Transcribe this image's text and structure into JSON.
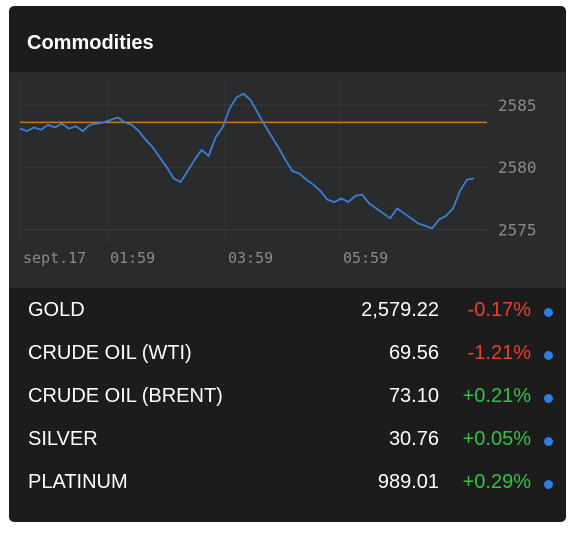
{
  "widget": {
    "title": "Commodities"
  },
  "colors": {
    "background": "#1c1c1c",
    "chart_background": "#2a2b2d",
    "line": "#3a7fd5",
    "reference_line": "#c7791e",
    "negative": "#e8412b",
    "positive": "#36c048",
    "dot": "#2f7de1",
    "tick_text": "#8a8a8a"
  },
  "rows": [
    {
      "name": "GOLD",
      "price": "2,579.22",
      "change": "-0.17%",
      "direction": "down"
    },
    {
      "name": "CRUDE OIL (WTI)",
      "price": "69.56",
      "change": "-1.21%",
      "direction": "down"
    },
    {
      "name": "CRUDE OIL (BRENT)",
      "price": "73.10",
      "change": "+0.21%",
      "direction": "up"
    },
    {
      "name": "SILVER",
      "price": "30.76",
      "change": "+0.05%",
      "direction": "up"
    },
    {
      "name": "PLATINUM",
      "price": "989.01",
      "change": "+0.29%",
      "direction": "up"
    }
  ],
  "chart_data": {
    "type": "line",
    "title": "",
    "xlabel": "",
    "ylabel": "",
    "x_ticks": [
      "sept.17",
      "01:59",
      "03:59",
      "05:59"
    ],
    "y_ticks": [
      2575,
      2580,
      2585
    ],
    "ylim": [
      2574,
      2587
    ],
    "grid": true,
    "reference_line": 2583.6,
    "series": [
      {
        "values": [
          2583.1,
          2582.9,
          2583.2,
          2583.0,
          2583.4,
          2583.2,
          2583.5,
          2583.1,
          2583.3,
          2582.9,
          2583.4,
          2583.5,
          2583.6,
          2583.8,
          2584.0,
          2583.6,
          2583.4,
          2582.9,
          2582.2,
          2581.6,
          2580.8,
          2580.0,
          2579.1,
          2578.8,
          2579.7,
          2580.6,
          2581.4,
          2580.9,
          2582.4,
          2583.2,
          2584.7,
          2585.6,
          2585.9,
          2585.4,
          2584.4,
          2583.4,
          2582.5,
          2581.6,
          2580.6,
          2579.7,
          2579.5,
          2579.0,
          2578.6,
          2578.1,
          2577.4,
          2577.2,
          2577.5,
          2577.2,
          2577.7,
          2577.8,
          2577.1,
          2576.7,
          2576.3,
          2575.9,
          2576.7,
          2576.3,
          2575.9,
          2575.5,
          2575.3,
          2575.1,
          2575.8,
          2576.1,
          2576.7,
          2578.1,
          2579.0,
          2579.1
        ]
      }
    ]
  }
}
